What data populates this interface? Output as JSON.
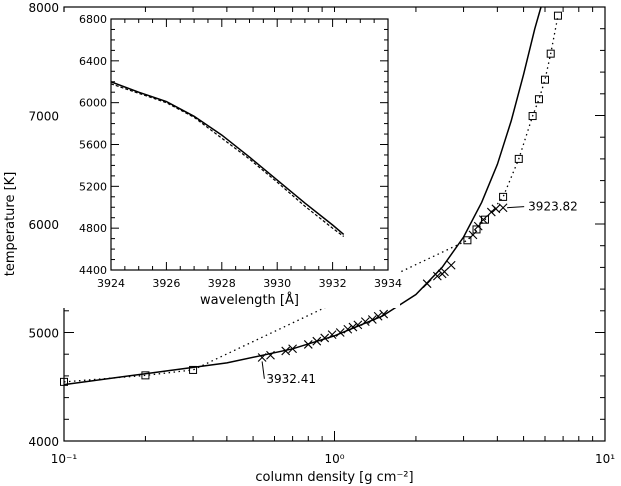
{
  "chart_data": [
    {
      "type": "line",
      "xlabel": "column density [g cm⁻²]",
      "ylabel": "temperature [K]",
      "xscale": "log",
      "xlim": [
        0.1,
        10
      ],
      "ylim": [
        4000,
        8000
      ],
      "x_ticks": [
        0.1,
        1,
        10
      ],
      "x_tick_labels": [
        "10⁻¹",
        "10⁰",
        "10¹"
      ],
      "y_ticks": [
        4000,
        5000,
        6000,
        7000,
        8000
      ],
      "y_tick_labels": [
        "4000",
        "5000",
        "6000",
        "7000",
        "8000"
      ],
      "grid": false,
      "legend": "none",
      "series": [
        {
          "style": "solid",
          "x": [
            0.1,
            0.2,
            0.4,
            0.7,
            1.0,
            1.5,
            2.0,
            2.5,
            3.0,
            3.5,
            4.0,
            4.5,
            5.0,
            5.5,
            5.8
          ],
          "y": [
            4520,
            4620,
            4720,
            4850,
            4970,
            5150,
            5350,
            5600,
            5880,
            6200,
            6550,
            6950,
            7380,
            7800,
            8000
          ]
        },
        {
          "style": "dotted",
          "marker": "square",
          "x": [
            0.1,
            0.2,
            0.3,
            3.1,
            3.35,
            3.6,
            4.2,
            4.8,
            5.4,
            5.7,
            6.0,
            6.3,
            6.7
          ],
          "y": [
            4545,
            4605,
            4655,
            5850,
            5950,
            6040,
            6250,
            6600,
            6995,
            7150,
            7330,
            7570,
            7920
          ]
        },
        {
          "style": "markers",
          "marker": "x",
          "x": [
            0.54,
            0.58,
            0.66,
            0.7,
            0.8,
            0.86,
            0.92,
            0.98,
            1.05,
            1.12,
            1.17,
            1.22,
            1.3,
            1.38,
            1.45,
            1.52,
            2.2,
            2.4,
            2.5,
            2.55,
            2.7,
            3.25,
            3.4,
            3.55,
            3.8,
            3.95,
            4.2
          ],
          "y": [
            4770,
            4790,
            4830,
            4850,
            4890,
            4920,
            4950,
            4980,
            5000,
            5030,
            5050,
            5070,
            5100,
            5120,
            5150,
            5170,
            5450,
            5520,
            5540,
            5560,
            5620,
            5900,
            5980,
            6040,
            6110,
            6140,
            6150
          ]
        }
      ],
      "annotations": [
        {
          "text": "3923.82",
          "x": 4.2,
          "y": 6150,
          "label_x": 5.2,
          "label_y": 6160
        },
        {
          "text": "3932.41",
          "x": 0.54,
          "y": 4770,
          "label_x": 0.56,
          "label_y": 4610
        }
      ]
    },
    {
      "type": "line",
      "xlabel": "wavelength [Å]",
      "ylabel": "",
      "xlim": [
        3924,
        3934
      ],
      "ylim": [
        4400,
        6800
      ],
      "x_ticks": [
        3924,
        3926,
        3928,
        3930,
        3932,
        3934
      ],
      "x_tick_labels": [
        "3924",
        "3926",
        "3928",
        "3930",
        "3932",
        "3934"
      ],
      "y_ticks": [
        4400,
        4800,
        5200,
        5600,
        6000,
        6400,
        6800
      ],
      "y_tick_labels": [
        "4400",
        "4800",
        "5200",
        "5600",
        "6000",
        "6400",
        "6800"
      ],
      "grid": false,
      "legend": "none",
      "series": [
        {
          "style": "solid",
          "x": [
            3924,
            3925,
            3926,
            3927,
            3928,
            3929,
            3930,
            3931,
            3932,
            3932.4
          ],
          "y": [
            6200,
            6100,
            6010,
            5870,
            5690,
            5480,
            5260,
            5040,
            4830,
            4740
          ]
        },
        {
          "style": "dashed",
          "x": [
            3924,
            3925,
            3926,
            3927,
            3928,
            3929,
            3930,
            3931,
            3932,
            3932.4
          ],
          "y": [
            6180,
            6090,
            6000,
            5860,
            5660,
            5460,
            5240,
            5010,
            4800,
            4720
          ]
        }
      ]
    }
  ]
}
